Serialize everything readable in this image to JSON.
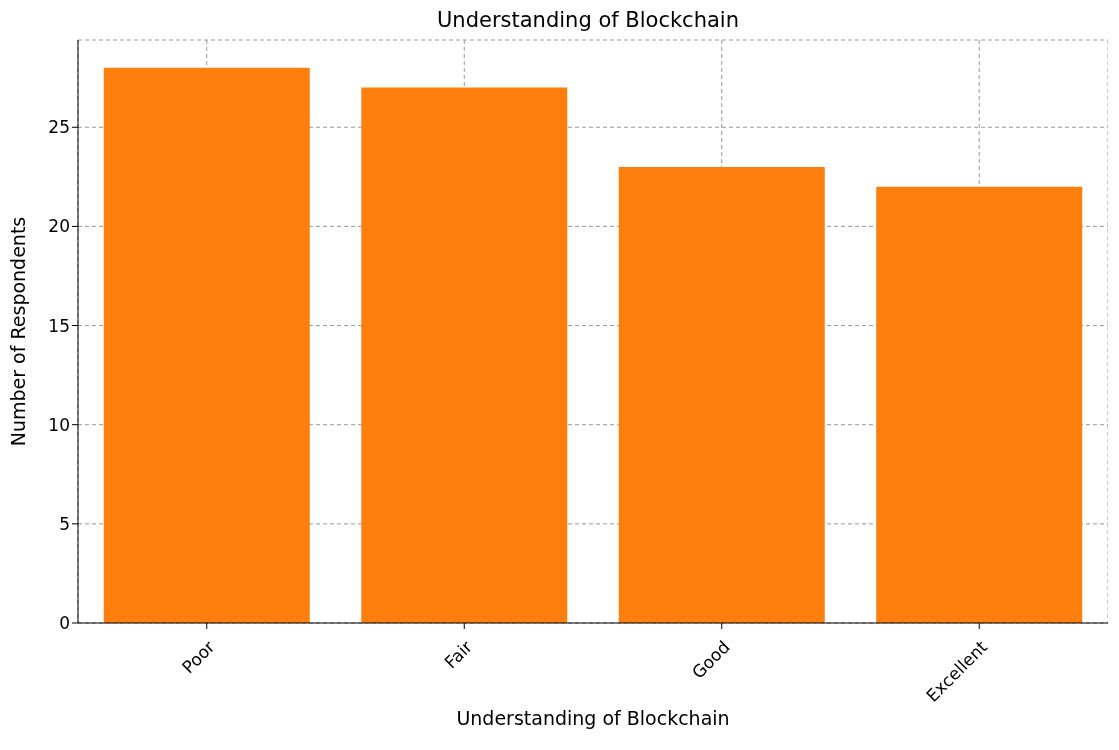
{
  "chart_data": {
    "type": "bar",
    "title": "Understanding of Blockchain",
    "xlabel": "Understanding of Blockchain",
    "ylabel": "Number of Respondents",
    "categories": [
      "Poor",
      "Fair",
      "Good",
      "Excellent"
    ],
    "values": [
      28,
      27,
      23,
      22
    ],
    "color": "#ff7f0e",
    "ylim": [
      0,
      29.4
    ],
    "yticks": [
      0,
      5,
      10,
      15,
      20,
      25
    ],
    "grid": true
  }
}
